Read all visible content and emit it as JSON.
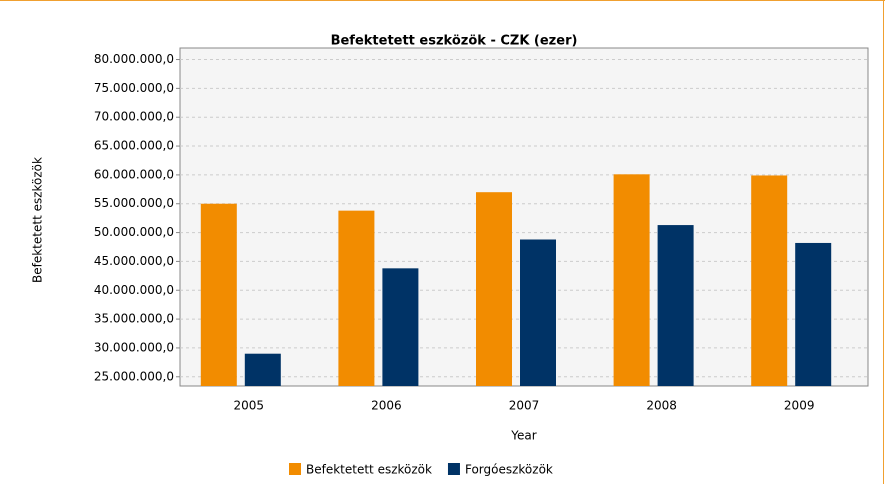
{
  "chart_data": {
    "type": "bar",
    "title": "Befektetett eszközök - CZK (ezer)",
    "x_label": "Year",
    "y_label": "Befektetett eszközök",
    "categories": [
      "2005",
      "2006",
      "2007",
      "2008",
      "2009"
    ],
    "series": [
      {
        "name": "Befektetett eszközök",
        "color": "#f28c00",
        "values": [
          55000000,
          53800000,
          57000000,
          60100000,
          59900000
        ]
      },
      {
        "name": "Forgóeszközök",
        "color": "#003366",
        "values": [
          29000000,
          43800000,
          48800000,
          51300000,
          48200000
        ]
      }
    ],
    "ylim": [
      23400000,
      82000000
    ],
    "yticks": [
      {
        "value": 25000000,
        "label": "25.000.000,0"
      },
      {
        "value": 30000000,
        "label": "30.000.000,0"
      },
      {
        "value": 35000000,
        "label": "35.000.000,0"
      },
      {
        "value": 40000000,
        "label": "40.000.000,0"
      },
      {
        "value": 45000000,
        "label": "45.000.000,0"
      },
      {
        "value": 50000000,
        "label": "50.000.000,0"
      },
      {
        "value": 55000000,
        "label": "55.000.000,0"
      },
      {
        "value": 60000000,
        "label": "60.000.000,0"
      },
      {
        "value": 65000000,
        "label": "65.000.000,0"
      },
      {
        "value": 70000000,
        "label": "70.000.000,0"
      },
      {
        "value": 75000000,
        "label": "75.000.000,0"
      },
      {
        "value": 80000000,
        "label": "80.000.000,0"
      }
    ],
    "grid": true,
    "legend": "bottom"
  }
}
